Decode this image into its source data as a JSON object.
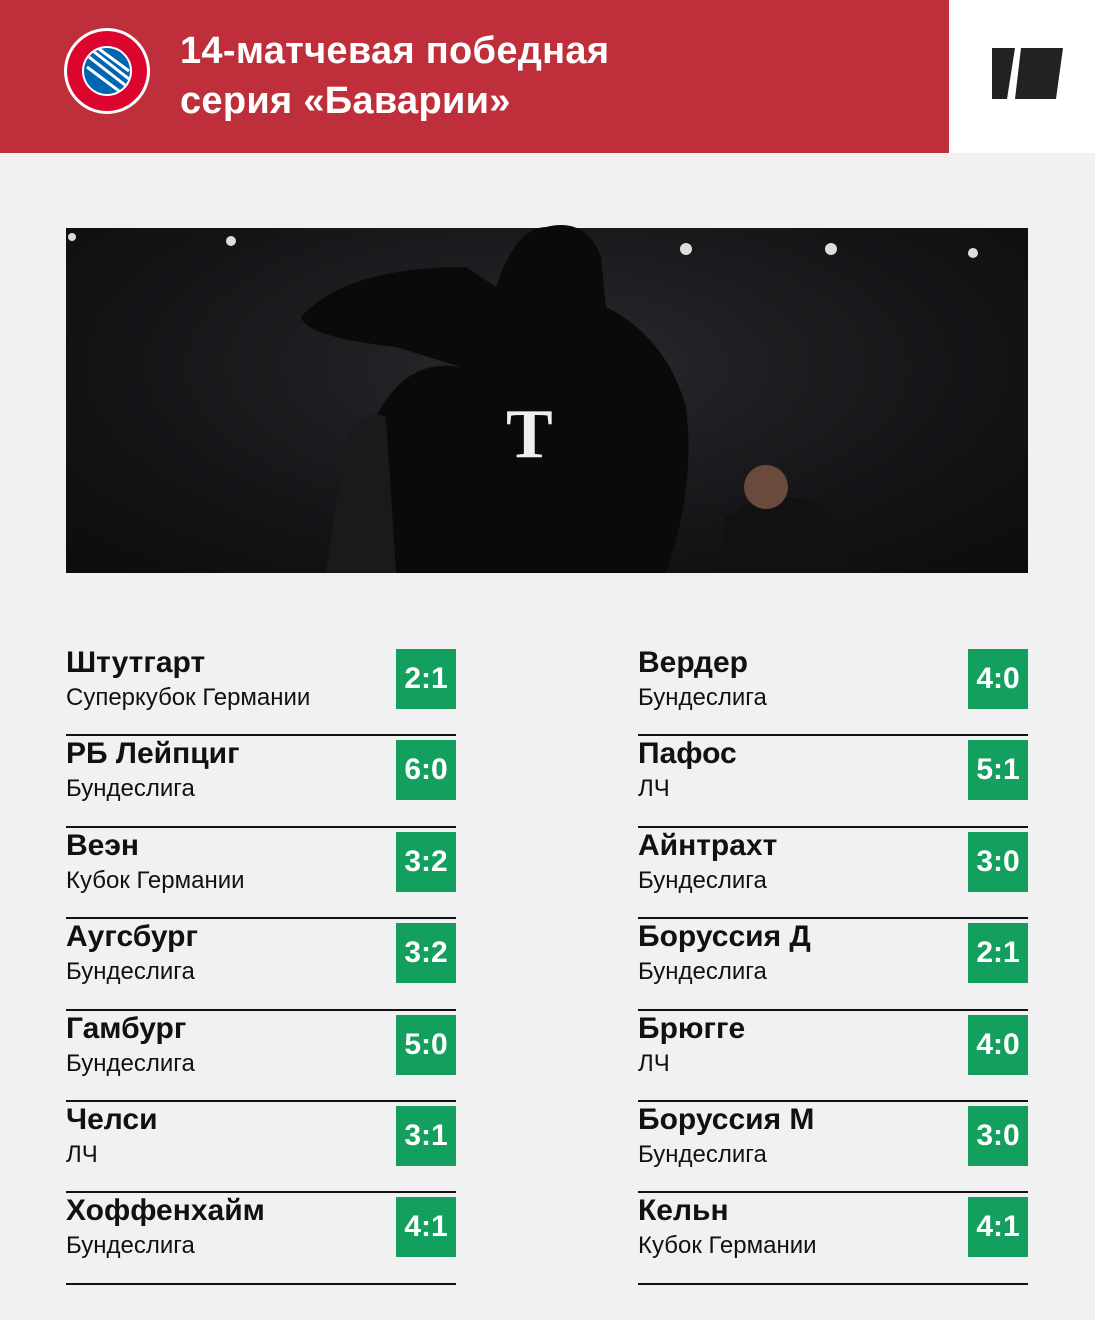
{
  "header": {
    "title_line1": "14-матчевая победная",
    "title_line2": "серия «Баварии»",
    "logo_text": "FC BAYERN MÜNCHEN"
  },
  "colors": {
    "header": "#be2f3b",
    "score": "#13a05f",
    "background": "#f1f1f1"
  },
  "left": [
    {
      "team": "Штутгарт",
      "competition": "Суперкубок Германии",
      "score": "2:1"
    },
    {
      "team": "РБ Лейпциг",
      "competition": "Бундеслига",
      "score": "6:0"
    },
    {
      "team": "Веэн",
      "competition": "Кубок Германии",
      "score": "3:2"
    },
    {
      "team": "Аугсбург",
      "competition": "Бундеслига",
      "score": "3:2"
    },
    {
      "team": "Гамбург",
      "competition": "Бундеслига",
      "score": "5:0"
    },
    {
      "team": "Челси",
      "competition": "ЛЧ",
      "score": "3:1"
    },
    {
      "team": "Хоффенхайм",
      "competition": "Бундеслига",
      "score": "4:1"
    }
  ],
  "right": [
    {
      "team": "Вердер",
      "competition": "Бундеслига",
      "score": "4:0"
    },
    {
      "team": "Пафос",
      "competition": "ЛЧ",
      "score": "5:1"
    },
    {
      "team": "Айнтрахт",
      "competition": "Бундеслига",
      "score": "3:0"
    },
    {
      "team": "Боруссия Д",
      "competition": "Бундеслига",
      "score": "2:1"
    },
    {
      "team": "Брюгге",
      "competition": "ЛЧ",
      "score": "4:0"
    },
    {
      "team": "Боруссия М",
      "competition": "Бундеслига",
      "score": "3:0"
    },
    {
      "team": "Кельн",
      "competition": "Кубок Германии",
      "score": "4:1"
    }
  ]
}
